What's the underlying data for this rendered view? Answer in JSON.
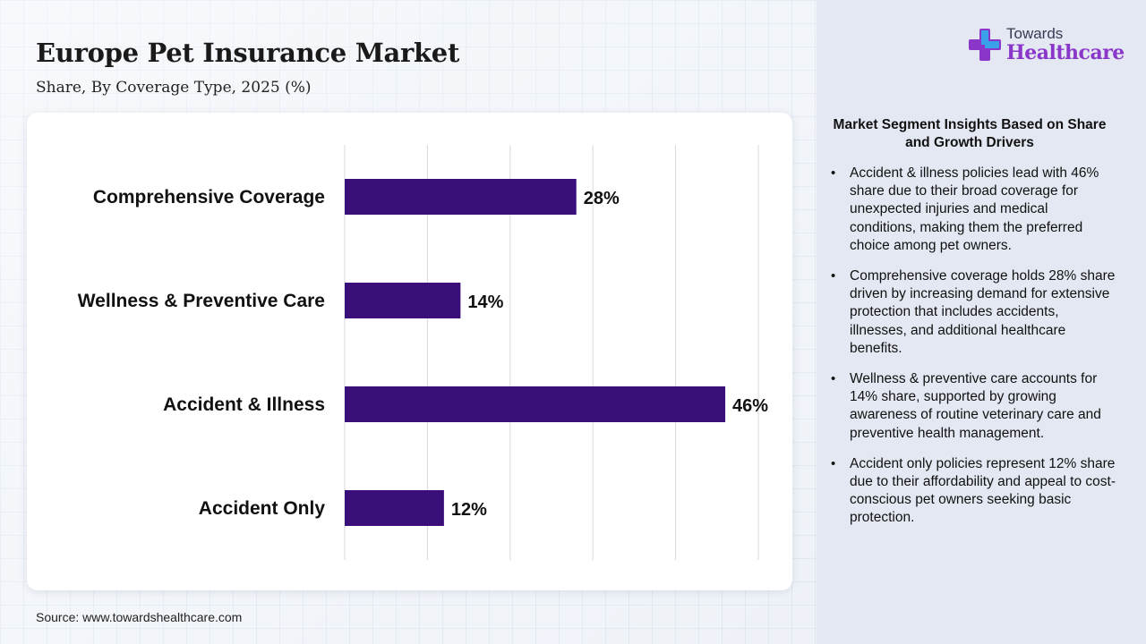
{
  "header": {
    "title": "Europe Pet Insurance Market",
    "subtitle": "Share, By Coverage Type, 2025 (%)"
  },
  "logo": {
    "line1": "Towards",
    "line2": "Healthcare",
    "icon": "plus-cross-logo-icon"
  },
  "source": "Source: www.towardshealthcare.com",
  "insights": {
    "title": "Market Segment Insights Based on Share and Growth Drivers",
    "items": [
      "Accident & illness policies lead with 46% share due to their broad coverage for unexpected injuries and medical conditions, making them the preferred choice among pet owners.",
      "Comprehensive coverage holds 28% share driven by increasing demand for extensive protection that includes accidents, illnesses, and additional healthcare benefits.",
      "Wellness & preventive care accounts for 14% share, supported by growing awareness of routine veterinary care and preventive health management.",
      "Accident only policies represent 12% share due to their affordability and appeal to cost-conscious pet owners seeking basic protection."
    ]
  },
  "colors": {
    "bar": "#3a0f7a",
    "grid": "#d9d9d9",
    "brand": "#8a36c9"
  },
  "chart_data": {
    "type": "bar",
    "orientation": "horizontal",
    "categories": [
      "Comprehensive Coverage",
      "Wellness & Preventive Care",
      "Accident & Illness",
      "Accident Only"
    ],
    "values": [
      28,
      14,
      46,
      12
    ],
    "data_labels": [
      "28%",
      "14%",
      "46%",
      "12%"
    ],
    "xlim": [
      0,
      50
    ],
    "grid": true,
    "legend": false
  }
}
